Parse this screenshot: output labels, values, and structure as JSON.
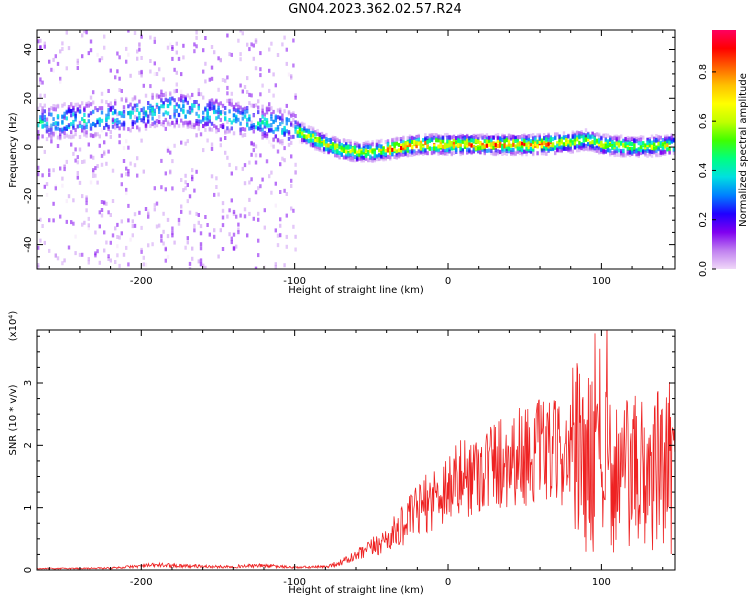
{
  "title": "GN04.2023.362.02.57.R24",
  "chart_data": [
    {
      "type": "heatmap",
      "xlabel": "Height of straight line (km)",
      "ylabel": "Frequency (Hz)",
      "xlim": [
        -268,
        148
      ],
      "ylim": [
        -50,
        48
      ],
      "x_ticks": [
        "-200",
        "-100",
        "0",
        "100"
      ],
      "y_ticks": [
        "-40",
        "-20",
        "0",
        "20",
        "40"
      ],
      "colorbar": {
        "label": "Normalized spectral amplitude",
        "range": [
          0.0,
          0.97
        ],
        "ticks": [
          "0.0",
          "0.2",
          "0.4",
          "0.6",
          "0.8"
        ],
        "colormap": [
          "#f0d8f8",
          "#c080f0",
          "#8000f0",
          "#2000ff",
          "#0080ff",
          "#00e0e0",
          "#00ff80",
          "#40ff00",
          "#c0ff00",
          "#ffff00",
          "#ffc000",
          "#ff6000",
          "#ff0000",
          "#ff0060"
        ]
      },
      "ridge_frequency": {
        "x": [
          -268,
          -220,
          -200,
          -180,
          -160,
          -140,
          -120,
          -100,
          -90,
          -80,
          -70,
          -60,
          -50,
          -40,
          -30,
          -20,
          -10,
          0,
          20,
          40,
          60,
          80,
          90,
          100,
          120,
          148
        ],
        "y": [
          10,
          12,
          14,
          16,
          14,
          12,
          10,
          7,
          4,
          1,
          -1,
          -2,
          -2,
          -1,
          0,
          1,
          1,
          1,
          1,
          1,
          1,
          2,
          3,
          1,
          0,
          1
        ]
      },
      "grid": false
    },
    {
      "type": "line",
      "xlabel": "Height of straight line (km)",
      "ylabel": "SNR (10 * v/v)",
      "y_multiplier": "(x10⁴)",
      "xlim": [
        -268,
        148
      ],
      "ylim": [
        0,
        3.85
      ],
      "x_ticks": [
        "-200",
        "-100",
        "0",
        "100"
      ],
      "y_ticks": [
        "0",
        "1",
        "2",
        "3"
      ],
      "series_color": "#ee2222",
      "envelope": {
        "x": [
          -268,
          -220,
          -190,
          -150,
          -120,
          -100,
          -80,
          -70,
          -60,
          -50,
          -40,
          -30,
          -20,
          -10,
          0,
          20,
          40,
          60,
          80,
          90,
          100,
          120,
          148
        ],
        "y": [
          0.02,
          0.03,
          0.08,
          0.05,
          0.07,
          0.04,
          0.05,
          0.12,
          0.22,
          0.35,
          0.5,
          0.7,
          0.95,
          1.15,
          1.35,
          1.6,
          1.8,
          1.9,
          1.85,
          1.75,
          1.6,
          1.5,
          1.65
        ]
      },
      "grid": false
    }
  ]
}
